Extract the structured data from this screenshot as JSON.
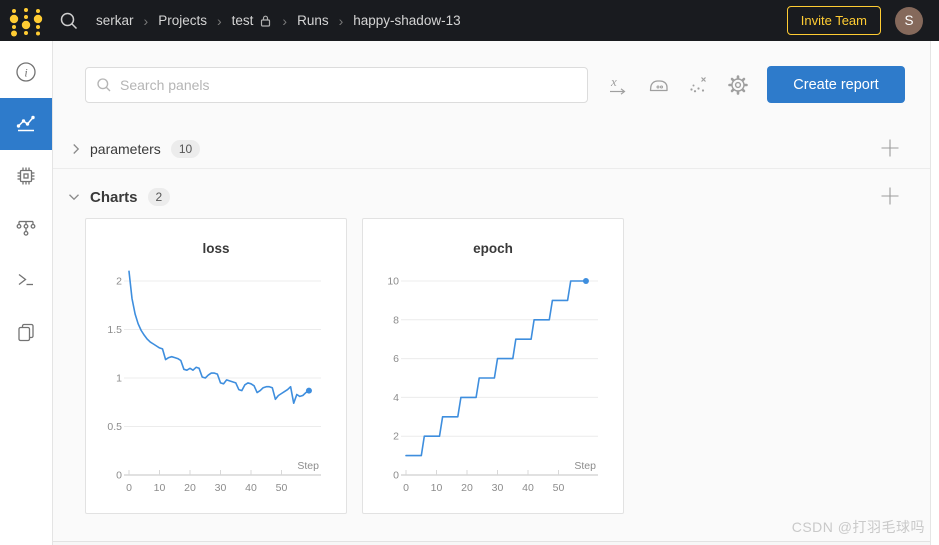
{
  "navbar": {
    "breadcrumb": [
      "serkar",
      "Projects",
      "test",
      "Runs",
      "happy-shadow-13"
    ],
    "separator": "›",
    "invite_button_label": "Invite Team",
    "avatar_initial": "S"
  },
  "sidebar": {
    "items": [
      {
        "id": "overview",
        "icon": "info-icon",
        "active": false
      },
      {
        "id": "charts",
        "icon": "line-chart-icon",
        "active": true
      },
      {
        "id": "system",
        "icon": "chip-icon",
        "active": false
      },
      {
        "id": "model",
        "icon": "model-graph-icon",
        "active": false
      },
      {
        "id": "logs",
        "icon": "terminal-icon",
        "active": false
      },
      {
        "id": "files",
        "icon": "files-icon",
        "active": false
      }
    ]
  },
  "toolbar": {
    "search_placeholder": "Search panels",
    "icons": [
      "x-axis",
      "smoothing",
      "outliers",
      "settings"
    ],
    "create_report_label": "Create report"
  },
  "sections": {
    "parameters": {
      "label": "parameters",
      "count": "10",
      "collapsed": true
    },
    "charts": {
      "label": "Charts",
      "count": "2",
      "collapsed": false
    }
  },
  "watermark": "CSDN @打羽毛球吗",
  "colors": {
    "navbar_bg": "#191b1f",
    "gold": "#ffcc33",
    "primary_blue": "#2e7bcb",
    "series_blue": "#3e8ede",
    "avatar_brown": "#85695b"
  },
  "chart_data": [
    {
      "type": "line",
      "title": "loss",
      "xlabel": "Step",
      "color": "#3e8ede",
      "x_start": 0,
      "x_step": 1,
      "x_ticks": [
        0,
        10,
        20,
        30,
        40,
        50
      ],
      "y_ticks": [
        0,
        0.5,
        1,
        1.5,
        2
      ],
      "xlim": [
        0,
        59
      ],
      "ylim": [
        0,
        2.2
      ],
      "grid": true,
      "legend": false,
      "end_dot": true,
      "values": [
        2.1,
        1.82,
        1.66,
        1.56,
        1.49,
        1.44,
        1.4,
        1.37,
        1.35,
        1.33,
        1.31,
        1.3,
        1.19,
        1.21,
        1.22,
        1.21,
        1.2,
        1.18,
        1.09,
        1.08,
        1.1,
        1.08,
        1.11,
        1.1,
        1.01,
        1.0,
        1.03,
        1.05,
        1.05,
        1.04,
        0.95,
        0.94,
        0.98,
        0.97,
        0.96,
        0.95,
        0.88,
        0.87,
        0.93,
        0.95,
        0.94,
        0.92,
        0.85,
        0.87,
        0.9,
        0.91,
        0.91,
        0.9,
        0.78,
        0.82,
        0.84,
        0.86,
        0.88,
        0.91,
        0.74,
        0.83,
        0.81,
        0.82,
        0.85,
        0.87
      ]
    },
    {
      "type": "line",
      "title": "epoch",
      "xlabel": "Step",
      "color": "#3e8ede",
      "x_start": 0,
      "x_step": 1,
      "x_ticks": [
        0,
        10,
        20,
        30,
        40,
        50
      ],
      "y_ticks": [
        0,
        2,
        4,
        6,
        8,
        10
      ],
      "xlim": [
        0,
        59
      ],
      "ylim": [
        0,
        10.5
      ],
      "grid": true,
      "legend": false,
      "end_dot": true,
      "values": [
        1,
        1,
        1,
        1,
        1,
        1,
        2,
        2,
        2,
        2,
        2,
        2,
        3,
        3,
        3,
        3,
        3,
        3,
        4,
        4,
        4,
        4,
        4,
        4,
        5,
        5,
        5,
        5,
        5,
        5,
        6,
        6,
        6,
        6,
        6,
        6,
        7,
        7,
        7,
        7,
        7,
        7,
        8,
        8,
        8,
        8,
        8,
        8,
        9,
        9,
        9,
        9,
        9,
        9,
        10,
        10,
        10,
        10,
        10,
        10
      ]
    }
  ]
}
